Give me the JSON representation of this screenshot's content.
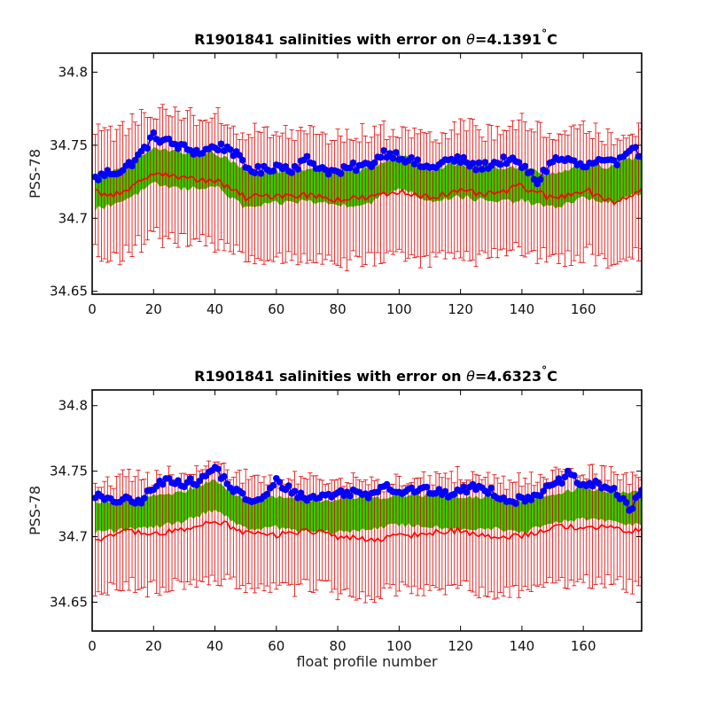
{
  "chart_data": [
    {
      "type": "line",
      "title_prefix": "R1901841 salinities with error on ",
      "title_symbol": "θ",
      "title_value": "=4.1391",
      "title_degree": "°",
      "title_unit": "C",
      "xlabel": "",
      "ylabel": "PSS-78",
      "xlim": [
        0,
        179
      ],
      "ylim": [
        34.648,
        34.813
      ],
      "xticks": [
        0,
        20,
        40,
        60,
        80,
        100,
        120,
        140,
        160
      ],
      "yticks": [
        34.65,
        34.7,
        34.75,
        34.8
      ],
      "ytick_labels": [
        "34.65",
        "34.7",
        "34.75",
        "34.8"
      ],
      "colors": {
        "measured": "#0000ff",
        "band": "#33cc00",
        "errorbars": "#e00000",
        "mapped": "#ff0000"
      },
      "series": [
        {
          "key": "measured",
          "x": [
            1,
            5,
            10,
            15,
            20,
            25,
            30,
            35,
            40,
            45,
            50,
            55,
            60,
            65,
            70,
            75,
            80,
            85,
            90,
            95,
            100,
            105,
            110,
            115,
            120,
            125,
            130,
            135,
            140,
            145,
            150,
            155,
            160,
            165,
            170,
            175,
            179
          ],
          "y": [
            34.727,
            34.731,
            34.733,
            34.742,
            34.756,
            34.752,
            34.748,
            34.745,
            34.749,
            34.748,
            34.735,
            34.732,
            34.736,
            34.734,
            34.74,
            34.734,
            34.731,
            34.735,
            34.736,
            34.745,
            34.743,
            34.738,
            34.734,
            34.739,
            34.74,
            34.735,
            34.737,
            34.74,
            34.736,
            34.725,
            34.74,
            34.74,
            34.735,
            34.738,
            34.737,
            34.749,
            34.743
          ]
        },
        {
          "key": "band_upper",
          "x": [
            1,
            10,
            20,
            30,
            40,
            50,
            60,
            70,
            80,
            90,
            100,
            110,
            120,
            130,
            140,
            150,
            160,
            170,
            179
          ],
          "y": [
            34.73,
            34.733,
            34.748,
            34.745,
            34.745,
            34.733,
            34.732,
            34.733,
            34.732,
            34.734,
            34.743,
            34.734,
            34.737,
            34.735,
            34.735,
            34.73,
            34.738,
            34.735,
            34.744
          ]
        },
        {
          "key": "band_lower",
          "x": [
            1,
            10,
            20,
            30,
            40,
            50,
            60,
            70,
            80,
            90,
            100,
            110,
            120,
            130,
            140,
            150,
            160,
            170,
            179
          ],
          "y": [
            34.706,
            34.712,
            34.723,
            34.72,
            34.722,
            34.707,
            34.71,
            34.712,
            34.709,
            34.71,
            34.721,
            34.712,
            34.715,
            34.711,
            34.712,
            34.707,
            34.714,
            34.71,
            34.718
          ]
        },
        {
          "key": "mapped",
          "x": [
            1,
            10,
            20,
            30,
            40,
            50,
            60,
            70,
            80,
            90,
            100,
            110,
            120,
            130,
            140,
            150,
            160,
            170,
            179
          ],
          "y": [
            34.718,
            34.716,
            34.732,
            34.727,
            34.726,
            34.714,
            34.716,
            34.716,
            34.713,
            34.714,
            34.718,
            34.715,
            34.718,
            34.716,
            34.722,
            34.713,
            34.72,
            34.711,
            34.719
          ]
        }
      ],
      "errorbar_halfwidth_range": [
        0.037,
        0.049
      ]
    },
    {
      "type": "line",
      "title_prefix": "R1901841 salinities with error on ",
      "title_symbol": "θ",
      "title_value": "=4.6323",
      "title_degree": "°",
      "title_unit": "C",
      "xlabel": "float profile number",
      "ylabel": "PSS-78",
      "xlim": [
        0,
        179
      ],
      "ylim": [
        34.628,
        34.812
      ],
      "xticks": [
        0,
        20,
        40,
        60,
        80,
        100,
        120,
        140,
        160
      ],
      "yticks": [
        34.65,
        34.7,
        34.75,
        34.8
      ],
      "ytick_labels": [
        "34.65",
        "34.7",
        "34.75",
        "34.8"
      ],
      "colors": {
        "measured": "#0000ff",
        "band": "#33cc00",
        "errorbars": "#e00000",
        "mapped": "#ff0000"
      },
      "series": [
        {
          "key": "measured",
          "x": [
            1,
            5,
            10,
            15,
            20,
            25,
            30,
            35,
            40,
            45,
            50,
            55,
            60,
            65,
            70,
            75,
            80,
            85,
            90,
            95,
            100,
            105,
            110,
            115,
            120,
            125,
            130,
            135,
            140,
            145,
            150,
            155,
            160,
            165,
            170,
            175,
            179
          ],
          "y": [
            34.732,
            34.727,
            34.728,
            34.726,
            34.737,
            34.744,
            34.741,
            34.742,
            34.753,
            34.738,
            34.729,
            34.727,
            34.742,
            34.735,
            34.729,
            34.731,
            34.733,
            34.734,
            34.732,
            34.74,
            34.734,
            34.736,
            34.735,
            34.732,
            34.735,
            34.738,
            34.735,
            34.728,
            34.728,
            34.733,
            34.738,
            34.747,
            34.739,
            34.74,
            34.736,
            34.72,
            34.735
          ]
        },
        {
          "key": "band_upper",
          "x": [
            1,
            10,
            20,
            30,
            40,
            50,
            60,
            70,
            80,
            90,
            100,
            110,
            120,
            130,
            140,
            150,
            160,
            170,
            179
          ],
          "y": [
            34.727,
            34.727,
            34.731,
            34.735,
            34.743,
            34.728,
            34.73,
            34.728,
            34.728,
            34.73,
            34.731,
            34.732,
            34.729,
            34.73,
            34.727,
            34.733,
            34.737,
            34.734,
            34.733
          ]
        },
        {
          "key": "band_lower",
          "x": [
            1,
            10,
            20,
            30,
            40,
            50,
            60,
            70,
            80,
            90,
            100,
            110,
            120,
            130,
            140,
            150,
            160,
            170,
            179
          ],
          "y": [
            34.704,
            34.705,
            34.707,
            34.712,
            34.721,
            34.706,
            34.707,
            34.704,
            34.703,
            34.706,
            34.709,
            34.708,
            34.706,
            34.706,
            34.703,
            34.71,
            34.714,
            34.711,
            34.709
          ]
        },
        {
          "key": "mapped",
          "x": [
            1,
            10,
            20,
            30,
            40,
            50,
            60,
            70,
            80,
            90,
            100,
            110,
            120,
            130,
            140,
            150,
            160,
            170,
            179
          ],
          "y": [
            34.698,
            34.704,
            34.702,
            34.705,
            34.713,
            34.703,
            34.701,
            34.705,
            34.7,
            34.698,
            34.7,
            34.703,
            34.705,
            34.699,
            34.701,
            34.707,
            34.708,
            34.706,
            34.704
          ]
        }
      ],
      "errorbar_halfwidth_range": [
        0.036,
        0.048
      ]
    }
  ]
}
